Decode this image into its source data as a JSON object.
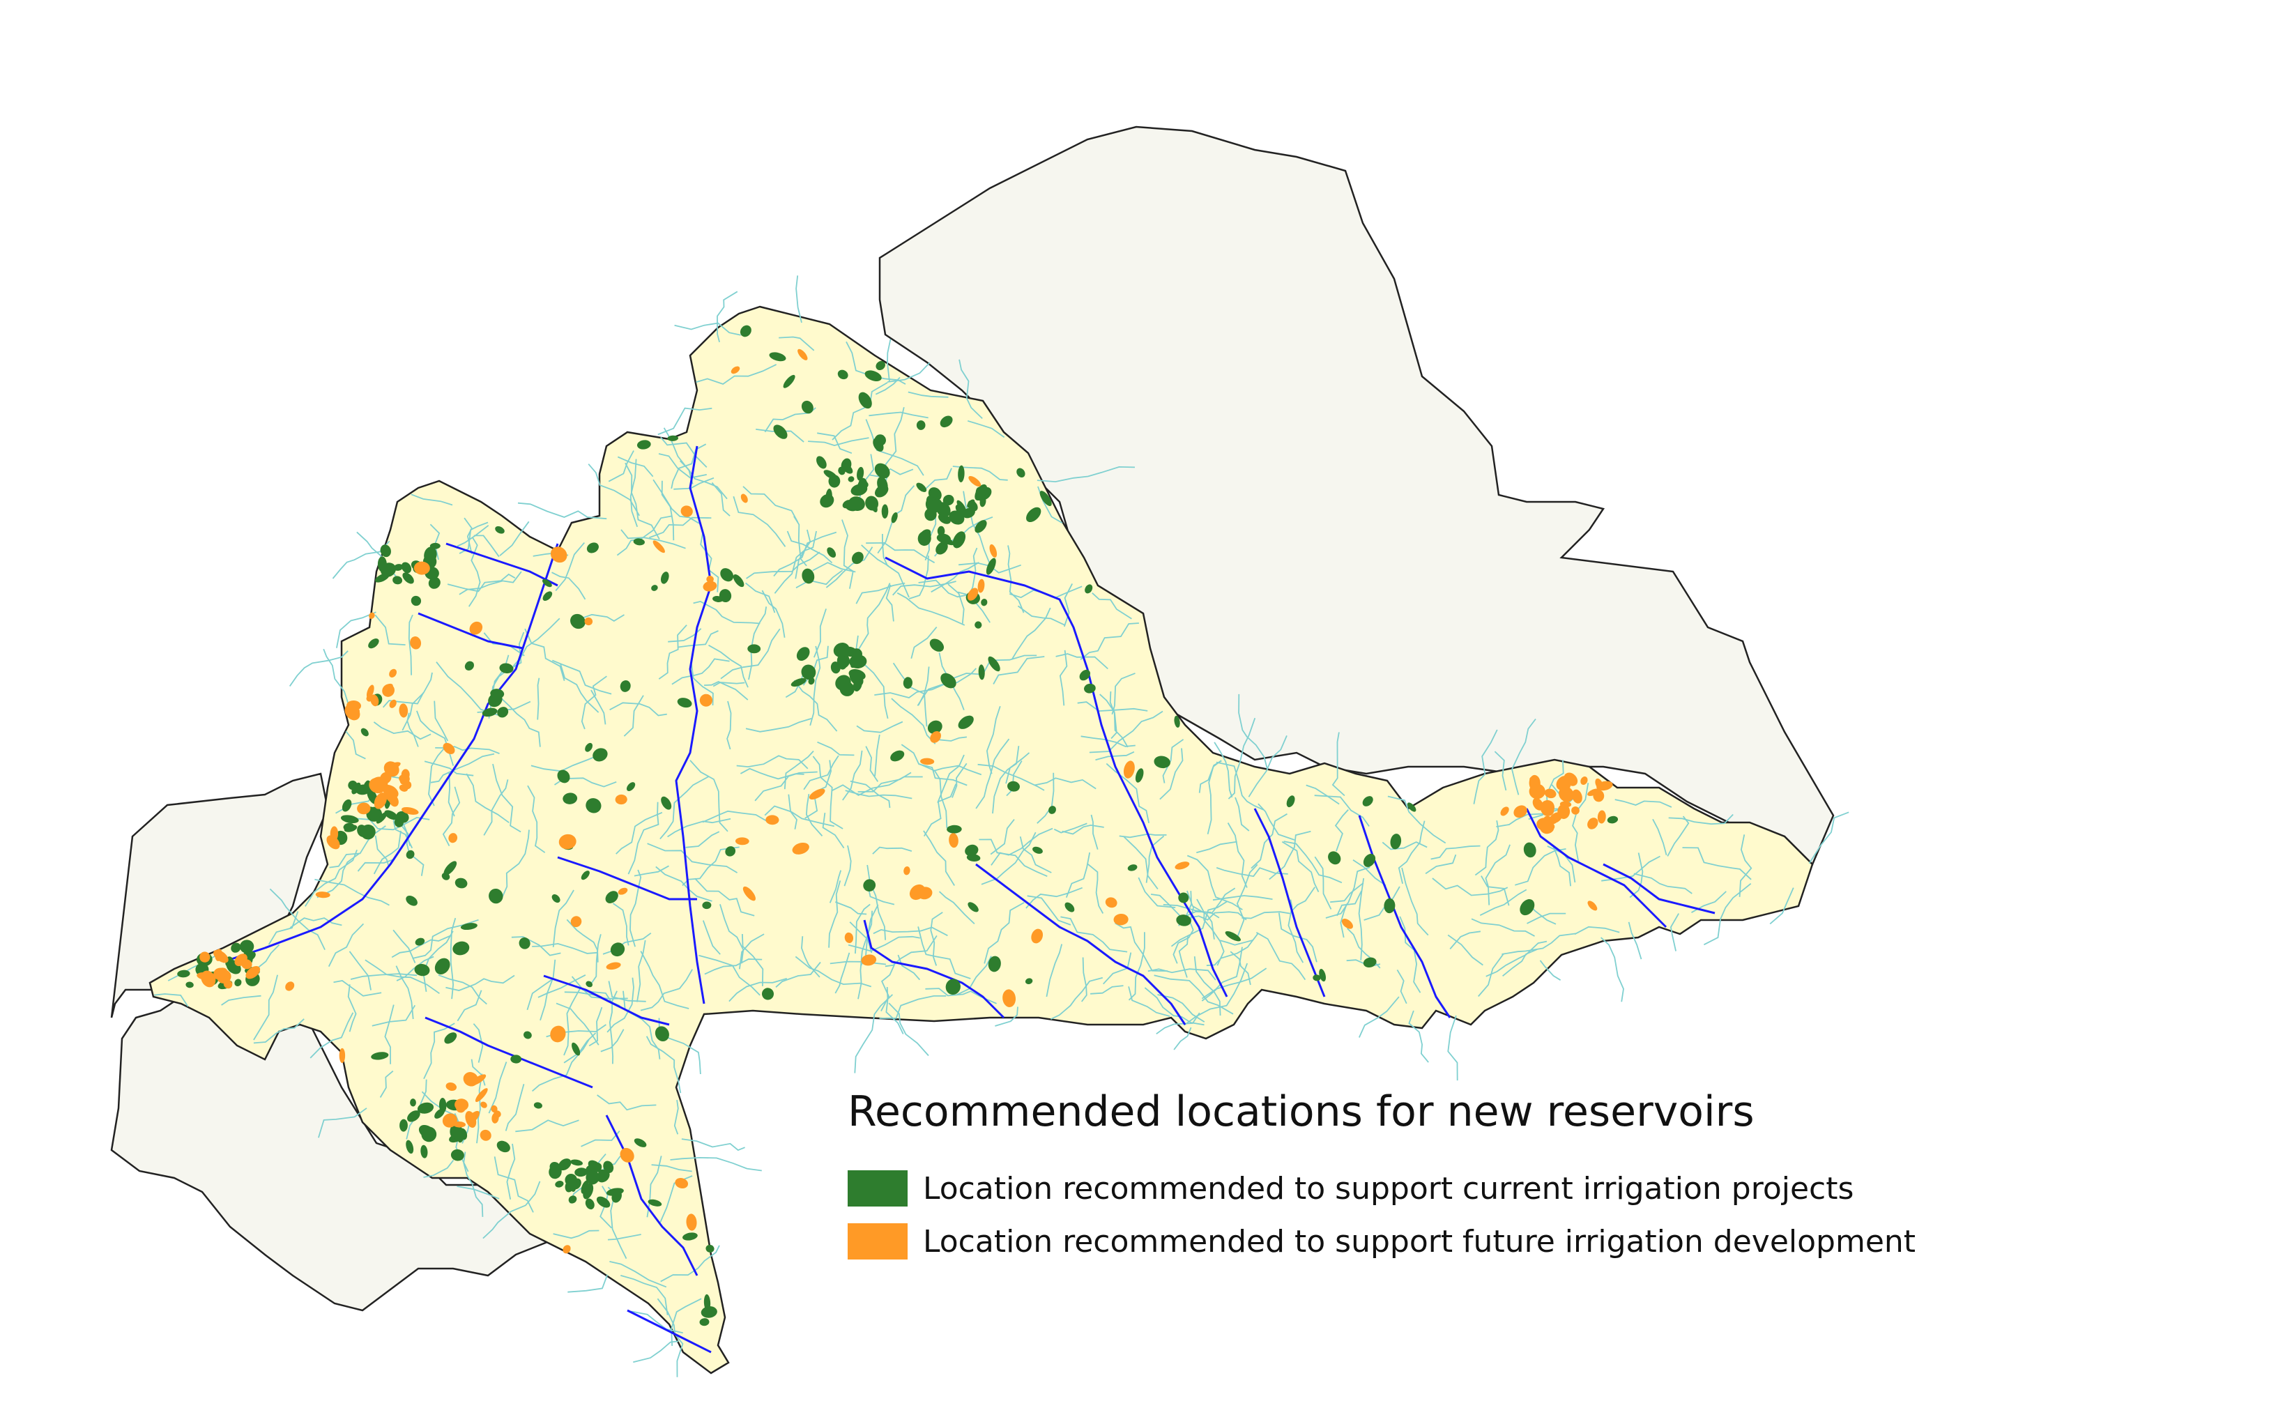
{
  "legend": {
    "title": "Recommended locations for new reservoirs",
    "items": [
      {
        "label": "Location recommended to support current irrigation projects",
        "color": "#2e7d2e"
      },
      {
        "label": "Location recommended to support future irrigation development",
        "color": "#ff9a26"
      }
    ]
  },
  "map": {
    "basin_fill_color": "#fffacd",
    "outside_fill_color": "#f6f6ef",
    "border_color": "#222222",
    "main_river_color": "#1a1aff",
    "tributary_color": "#7fd0d0"
  }
}
